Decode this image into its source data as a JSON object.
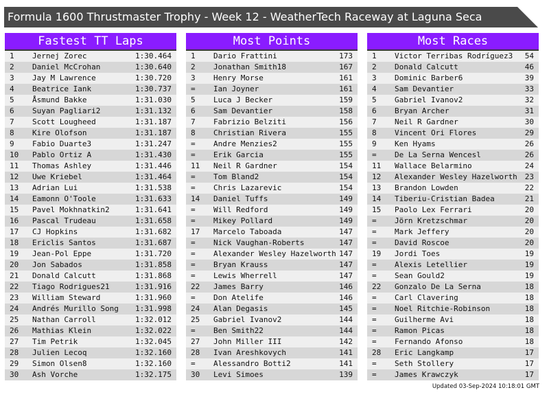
{
  "title": "Formula 1600 Thrustmaster Trophy - Week 12 - WeatherTech Raceway at Laguna Seca",
  "colors": {
    "header": "#8a1cff",
    "title_bar": "#4a4a4a"
  },
  "tables": [
    {
      "heading": "Fastest TT Laps",
      "rows": [
        [
          "1",
          "Jernej Zorec",
          "1:30.464"
        ],
        [
          "2",
          "Daniel McCrohan",
          "1:30.640"
        ],
        [
          "3",
          "Jay M Lawrence",
          "1:30.720"
        ],
        [
          "4",
          "Beatrice Iank",
          "1:30.737"
        ],
        [
          "5",
          "Åsmund Bakke",
          "1:31.030"
        ],
        [
          "6",
          "Suyan Pagliari2",
          "1:31.132"
        ],
        [
          "7",
          "Scott Lougheed",
          "1:31.187"
        ],
        [
          "8",
          "Kire Olofson",
          "1:31.187"
        ],
        [
          "9",
          "Fabio Duarte3",
          "1:31.247"
        ],
        [
          "10",
          "Pablo Ortiz A",
          "1:31.430"
        ],
        [
          "11",
          "Thomas Ashley",
          "1:31.446"
        ],
        [
          "12",
          "Uwe Kriebel",
          "1:31.464"
        ],
        [
          "13",
          "Adrian Lui",
          "1:31.538"
        ],
        [
          "14",
          "Eamonn O'Toole",
          "1:31.633"
        ],
        [
          "15",
          "Pavel Mokhnatkin2",
          "1:31.641"
        ],
        [
          "16",
          "Pascal Trudeau",
          "1:31.658"
        ],
        [
          "17",
          "CJ Hopkins",
          "1:31.682"
        ],
        [
          "18",
          "Ericlis Santos",
          "1:31.687"
        ],
        [
          "19",
          "Jean-Pol Eppe",
          "1:31.720"
        ],
        [
          "20",
          "Jon Sabados",
          "1:31.858"
        ],
        [
          "21",
          "Donald Calcutt",
          "1:31.868"
        ],
        [
          "22",
          "Tiago Rodrigues21",
          "1:31.916"
        ],
        [
          "23",
          "William Steward",
          "1:31.960"
        ],
        [
          "24",
          "Andrés Murillo Song",
          "1:31.998"
        ],
        [
          "25",
          "Nathan Carroll",
          "1:32.012"
        ],
        [
          "26",
          "Mathias Klein",
          "1:32.022"
        ],
        [
          "27",
          "Tim Petrik",
          "1:32.045"
        ],
        [
          "28",
          "Julien Lecoq",
          "1:32.160"
        ],
        [
          "29",
          "Simon Olsen8",
          "1:32.160"
        ],
        [
          "30",
          "Ash Vorche",
          "1:32.175"
        ]
      ]
    },
    {
      "heading": "Most Points",
      "rows": [
        [
          "1",
          "Dario Frattini",
          "173"
        ],
        [
          "2",
          "Jonathan Smith18",
          "167"
        ],
        [
          "3",
          "Henry Morse",
          "161"
        ],
        [
          "=",
          "Ian Joyner",
          "161"
        ],
        [
          "5",
          "Luca J Becker",
          "159"
        ],
        [
          "6",
          "Sam Devantier",
          "158"
        ],
        [
          "7",
          "Fabrizio Belziti",
          "156"
        ],
        [
          "8",
          "Christian Rivera",
          "155"
        ],
        [
          "=",
          "Andre Menzies2",
          "155"
        ],
        [
          "=",
          "Erik Garcia",
          "155"
        ],
        [
          "11",
          "Neil R Gardner",
          "154"
        ],
        [
          "=",
          "Tom Bland2",
          "154"
        ],
        [
          "=",
          "Chris Lazarevic",
          "154"
        ],
        [
          "14",
          "Daniel Tuffs",
          "149"
        ],
        [
          "=",
          "Will Redford",
          "149"
        ],
        [
          "=",
          "Mikey Pollard",
          "149"
        ],
        [
          "17",
          "Marcelo Taboada",
          "147"
        ],
        [
          "=",
          "Nick Vaughan-Roberts",
          "147"
        ],
        [
          "=",
          "Alexander Wesley Hazelworth",
          "147"
        ],
        [
          "=",
          "Bryan Krauss",
          "147"
        ],
        [
          "=",
          "Lewis Wherrell",
          "147"
        ],
        [
          "22",
          "James Barry",
          "146"
        ],
        [
          "=",
          "Don Atelife",
          "146"
        ],
        [
          "24",
          "Alan Degasis",
          "145"
        ],
        [
          "25",
          "Gabriel Ivanov2",
          "144"
        ],
        [
          "=",
          "Ben Smith22",
          "144"
        ],
        [
          "27",
          "John Miller III",
          "142"
        ],
        [
          "28",
          "Ivan Areshkovych",
          "141"
        ],
        [
          "=",
          "Alessandro Botti2",
          "141"
        ],
        [
          "30",
          "Levi Simoes",
          "139"
        ]
      ]
    },
    {
      "heading": "Most Races",
      "rows": [
        [
          "1",
          "Victor Terribas Rodríguez3",
          "54"
        ],
        [
          "2",
          "Donald Calcutt",
          "46"
        ],
        [
          "3",
          "Dominic Barber6",
          "39"
        ],
        [
          "4",
          "Sam Devantier",
          "33"
        ],
        [
          "5",
          "Gabriel Ivanov2",
          "32"
        ],
        [
          "6",
          "Bryan Archer",
          "31"
        ],
        [
          "7",
          "Neil R Gardner",
          "30"
        ],
        [
          "8",
          "Vincent Ori Flores",
          "29"
        ],
        [
          "9",
          "Ken Hyams",
          "26"
        ],
        [
          "=",
          "De La Serna Wencesl",
          "26"
        ],
        [
          "11",
          "Wallace Belarmino",
          "24"
        ],
        [
          "12",
          "Alexander Wesley Hazelworth",
          "23"
        ],
        [
          "13",
          "Brandon Lowden",
          "22"
        ],
        [
          "14",
          "Tiberiu-Cristian Badea",
          "21"
        ],
        [
          "15",
          "Paolo Lex Ferrari",
          "20"
        ],
        [
          "=",
          "Jörn Kretzschmar",
          "20"
        ],
        [
          "=",
          "Mark Jeffery",
          "20"
        ],
        [
          "=",
          "David Roscoe",
          "20"
        ],
        [
          "19",
          "Jordi Toes",
          "19"
        ],
        [
          "=",
          "Alexis Letellier",
          "19"
        ],
        [
          "=",
          "Sean Gould2",
          "19"
        ],
        [
          "22",
          "Gonzalo De La Serna",
          "18"
        ],
        [
          "=",
          "Carl Clavering",
          "18"
        ],
        [
          "=",
          "Noel Ritchie-Robinson",
          "18"
        ],
        [
          "=",
          "Guilherme Avi",
          "18"
        ],
        [
          "=",
          "Ramon Picas",
          "18"
        ],
        [
          "=",
          "Fernando Afonso",
          "18"
        ],
        [
          "28",
          "Eric Langkamp",
          "17"
        ],
        [
          "=",
          "Seth Stollery",
          "17"
        ],
        [
          "=",
          "James Krawczyk",
          "17"
        ]
      ]
    }
  ],
  "updated": "Updated 03-Sep-2024 10:18:01 GMT"
}
